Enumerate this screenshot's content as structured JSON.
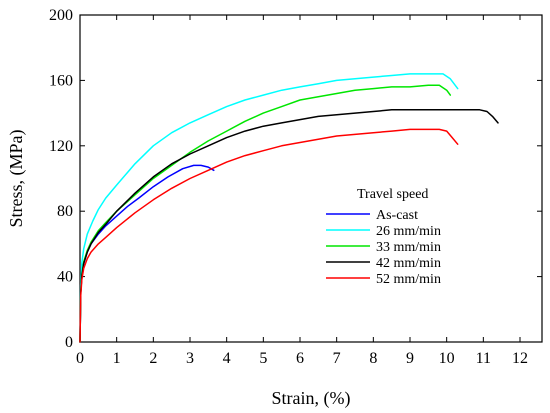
{
  "chart_data": {
    "type": "line",
    "xlabel": "Strain, (%)",
    "ylabel": "Stress, (MPa)",
    "xlim": [
      0,
      12.6
    ],
    "ylim": [
      0,
      200
    ],
    "x_ticks": [
      0,
      1,
      2,
      3,
      4,
      5,
      6,
      7,
      8,
      9,
      10,
      11,
      12
    ],
    "y_ticks": [
      0,
      40,
      80,
      120,
      160,
      200
    ],
    "grid": false,
    "legend": {
      "title": "Travel speed",
      "placement": "center-right"
    },
    "series": [
      {
        "name": "As-cast",
        "color": "#0000ff",
        "x": [
          0,
          0.02,
          0.05,
          0.1,
          0.2,
          0.3,
          0.5,
          0.7,
          1.0,
          1.3,
          1.6,
          2.0,
          2.4,
          2.8,
          3.1,
          3.3,
          3.5,
          3.65
        ],
        "y": [
          0,
          30,
          40,
          48,
          55,
          60,
          66,
          71,
          77,
          83,
          88,
          95,
          101,
          106,
          108,
          108,
          107,
          105
        ]
      },
      {
        "name": "26 mm/min",
        "color": "#00ffff",
        "x": [
          0,
          0.02,
          0.05,
          0.1,
          0.2,
          0.35,
          0.5,
          0.7,
          1.0,
          1.5,
          2.0,
          2.5,
          3.0,
          3.5,
          4.0,
          4.5,
          5.0,
          5.5,
          6.0,
          6.5,
          7.0,
          7.5,
          8.0,
          8.5,
          9.0,
          9.5,
          9.9,
          10.1,
          10.3
        ],
        "y": [
          0,
          35,
          48,
          57,
          66,
          74,
          81,
          88,
          96,
          109,
          120,
          128,
          134,
          139,
          144,
          148,
          151,
          154,
          156,
          158,
          160,
          161,
          162,
          163,
          164,
          164,
          164,
          161,
          155
        ]
      },
      {
        "name": "33 mm/min",
        "color": "#00e600",
        "x": [
          0,
          0.02,
          0.05,
          0.1,
          0.2,
          0.3,
          0.5,
          0.7,
          1.0,
          1.5,
          2.0,
          2.5,
          3.0,
          3.5,
          4.0,
          4.5,
          5.0,
          5.5,
          6.0,
          6.5,
          7.0,
          7.5,
          8.0,
          8.5,
          9.0,
          9.5,
          9.8,
          10.0,
          10.1
        ],
        "y": [
          0,
          30,
          41,
          49,
          56,
          61,
          68,
          73,
          80,
          90,
          100,
          108,
          116,
          123,
          129,
          135,
          140,
          144,
          148,
          150,
          152,
          154,
          155,
          156,
          156,
          157,
          157,
          154,
          151
        ]
      },
      {
        "name": "42 mm/min",
        "color": "#000000",
        "x": [
          0,
          0.02,
          0.05,
          0.1,
          0.2,
          0.3,
          0.5,
          0.7,
          1.0,
          1.5,
          2.0,
          2.5,
          3.0,
          3.5,
          4.0,
          4.5,
          5.0,
          5.5,
          6.0,
          6.5,
          7.0,
          7.5,
          8.0,
          8.5,
          9.0,
          9.5,
          10.0,
          10.5,
          10.9,
          11.1,
          11.25,
          11.4
        ],
        "y": [
          0,
          30,
          40,
          48,
          55,
          60,
          67,
          72,
          80,
          91,
          101,
          109,
          115,
          120,
          125,
          129,
          132,
          134,
          136,
          138,
          139,
          140,
          141,
          142,
          142,
          142,
          142,
          142,
          142,
          141,
          138,
          134
        ]
      },
      {
        "name": "52 mm/min",
        "color": "#ff0000",
        "x": [
          0,
          0.02,
          0.05,
          0.1,
          0.2,
          0.3,
          0.5,
          0.7,
          1.0,
          1.5,
          2.0,
          2.5,
          3.0,
          3.5,
          4.0,
          4.5,
          5.0,
          5.5,
          6.0,
          6.5,
          7.0,
          7.5,
          8.0,
          8.5,
          9.0,
          9.5,
          9.8,
          10.0,
          10.15,
          10.3
        ],
        "y": [
          0,
          28,
          38,
          45,
          51,
          55,
          60,
          64,
          70,
          79,
          87,
          94,
          100,
          105,
          110,
          114,
          117,
          120,
          122,
          124,
          126,
          127,
          128,
          129,
          130,
          130,
          130,
          129,
          125,
          121
        ]
      }
    ]
  }
}
